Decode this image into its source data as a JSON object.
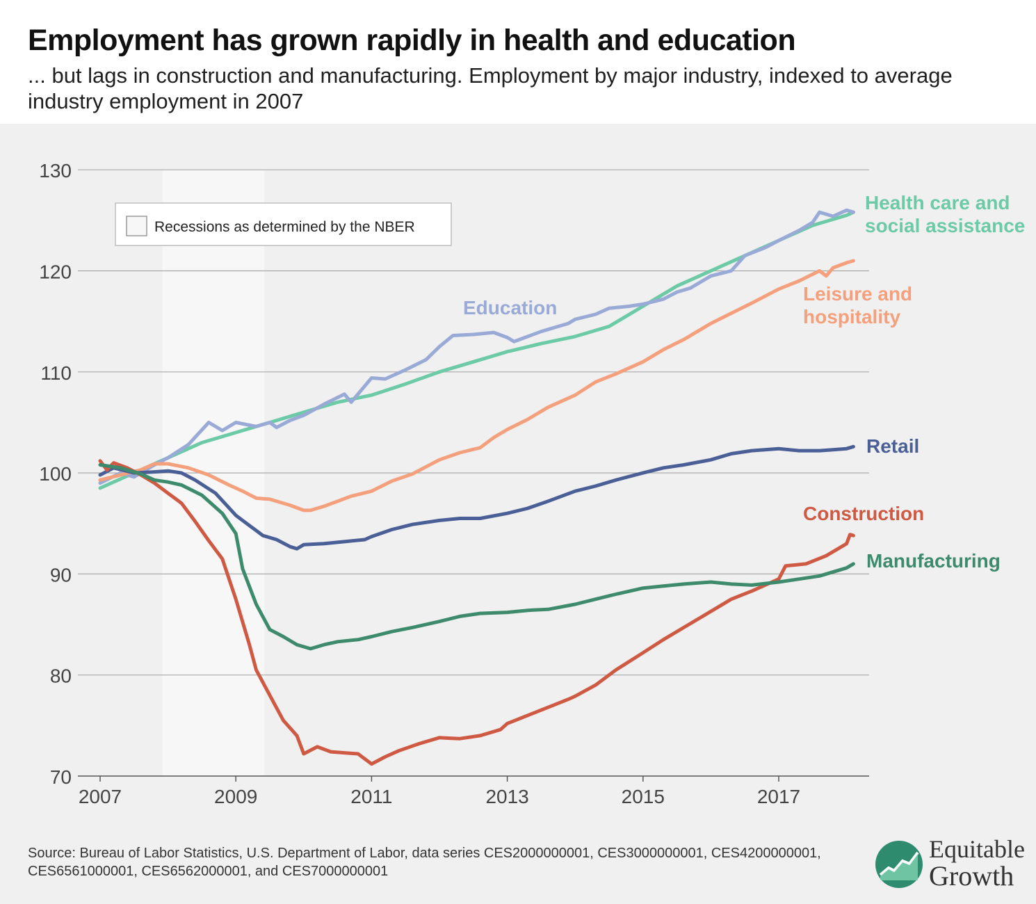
{
  "header": {
    "title": "Employment has grown rapidly in health and education",
    "subtitle": "... but lags in construction and manufacturing. Employment by major industry, indexed to average industry employment in 2007"
  },
  "source": "Source: Bureau of Labor Statistics, U.S. Department of Labor, data series CES2000000001, CES3000000001, CES4200000001, CES6561000001, CES6562000001, and CES7000000001",
  "logo": {
    "line1": "Equitable",
    "line2": "Growth",
    "icon": "chart-growth-icon",
    "color": "#2e8b6e"
  },
  "chart_data": {
    "type": "line",
    "title": "",
    "xlabel": "",
    "ylabel": "",
    "x_ticks": [
      "2007",
      "2009",
      "2011",
      "2013",
      "2015",
      "2017"
    ],
    "y_ticks": [
      70,
      80,
      90,
      100,
      110,
      120,
      130
    ],
    "xlim": [
      2007.0,
      2018.1
    ],
    "ylim": [
      70,
      130
    ],
    "grid": "horizontal",
    "recession": {
      "start": 2007.92,
      "end": 2009.42,
      "label": "Recessions as determined by the NBER",
      "color": "#f7f7f7"
    },
    "series": [
      {
        "name": "Health care and social assistance",
        "label_lines": [
          "Health care and",
          "social assistance"
        ],
        "color": "#6ccaa6",
        "points": [
          [
            2007.0,
            98.5
          ],
          [
            2007.5,
            100.0
          ],
          [
            2008.0,
            101.5
          ],
          [
            2008.5,
            103.0
          ],
          [
            2009.0,
            104.0
          ],
          [
            2009.5,
            105.0
          ],
          [
            2010.0,
            106.0
          ],
          [
            2010.5,
            107.0
          ],
          [
            2011.0,
            107.7
          ],
          [
            2011.5,
            108.8
          ],
          [
            2012.0,
            110.0
          ],
          [
            2012.5,
            111.0
          ],
          [
            2013.0,
            112.0
          ],
          [
            2013.5,
            112.8
          ],
          [
            2014.0,
            113.5
          ],
          [
            2014.5,
            114.5
          ],
          [
            2015.0,
            116.5
          ],
          [
            2015.5,
            118.5
          ],
          [
            2016.0,
            120.0
          ],
          [
            2016.5,
            121.5
          ],
          [
            2017.0,
            123.0
          ],
          [
            2017.5,
            124.5
          ],
          [
            2018.0,
            125.5
          ],
          [
            2018.1,
            125.8
          ]
        ]
      },
      {
        "name": "Education",
        "label_lines": [
          "Education"
        ],
        "color": "#9aaad6",
        "points": [
          [
            2007.0,
            99.0
          ],
          [
            2007.3,
            100.0
          ],
          [
            2007.5,
            99.6
          ],
          [
            2007.8,
            100.8
          ],
          [
            2008.0,
            101.5
          ],
          [
            2008.3,
            102.8
          ],
          [
            2008.6,
            105.0
          ],
          [
            2008.8,
            104.2
          ],
          [
            2009.0,
            105.0
          ],
          [
            2009.3,
            104.6
          ],
          [
            2009.5,
            105.0
          ],
          [
            2009.6,
            104.5
          ],
          [
            2009.8,
            105.2
          ],
          [
            2010.0,
            105.7
          ],
          [
            2010.3,
            106.8
          ],
          [
            2010.6,
            107.8
          ],
          [
            2010.7,
            107.0
          ],
          [
            2010.9,
            108.6
          ],
          [
            2011.0,
            109.4
          ],
          [
            2011.2,
            109.3
          ],
          [
            2011.5,
            110.2
          ],
          [
            2011.8,
            111.2
          ],
          [
            2012.0,
            112.5
          ],
          [
            2012.2,
            113.6
          ],
          [
            2012.5,
            113.7
          ],
          [
            2012.8,
            113.9
          ],
          [
            2013.0,
            113.4
          ],
          [
            2013.1,
            113.0
          ],
          [
            2013.3,
            113.5
          ],
          [
            2013.5,
            114.0
          ],
          [
            2013.7,
            114.4
          ],
          [
            2013.9,
            114.8
          ],
          [
            2014.0,
            115.2
          ],
          [
            2014.3,
            115.7
          ],
          [
            2014.5,
            116.3
          ],
          [
            2014.8,
            116.5
          ],
          [
            2015.0,
            116.7
          ],
          [
            2015.3,
            117.2
          ],
          [
            2015.5,
            117.9
          ],
          [
            2015.7,
            118.3
          ],
          [
            2016.0,
            119.5
          ],
          [
            2016.3,
            120.0
          ],
          [
            2016.5,
            121.5
          ],
          [
            2016.8,
            122.3
          ],
          [
            2017.0,
            123.0
          ],
          [
            2017.3,
            124.0
          ],
          [
            2017.5,
            124.8
          ],
          [
            2017.6,
            125.8
          ],
          [
            2017.8,
            125.4
          ],
          [
            2018.0,
            126.0
          ],
          [
            2018.1,
            125.8
          ]
        ]
      },
      {
        "name": "Leisure and hospitality",
        "label_lines": [
          "Leisure and",
          "hospitality"
        ],
        "color": "#f4a07c",
        "points": [
          [
            2007.0,
            99.3
          ],
          [
            2007.3,
            99.8
          ],
          [
            2007.6,
            100.3
          ],
          [
            2007.8,
            100.9
          ],
          [
            2008.0,
            100.9
          ],
          [
            2008.3,
            100.5
          ],
          [
            2008.6,
            99.8
          ],
          [
            2008.9,
            98.8
          ],
          [
            2009.1,
            98.2
          ],
          [
            2009.3,
            97.5
          ],
          [
            2009.5,
            97.4
          ],
          [
            2009.8,
            96.8
          ],
          [
            2010.0,
            96.3
          ],
          [
            2010.1,
            96.3
          ],
          [
            2010.3,
            96.7
          ],
          [
            2010.5,
            97.2
          ],
          [
            2010.7,
            97.7
          ],
          [
            2011.0,
            98.2
          ],
          [
            2011.3,
            99.2
          ],
          [
            2011.6,
            99.9
          ],
          [
            2012.0,
            101.3
          ],
          [
            2012.3,
            102.0
          ],
          [
            2012.6,
            102.5
          ],
          [
            2012.8,
            103.5
          ],
          [
            2013.0,
            104.3
          ],
          [
            2013.3,
            105.3
          ],
          [
            2013.6,
            106.5
          ],
          [
            2014.0,
            107.7
          ],
          [
            2014.3,
            109.0
          ],
          [
            2014.6,
            109.8
          ],
          [
            2015.0,
            111.0
          ],
          [
            2015.3,
            112.2
          ],
          [
            2015.6,
            113.2
          ],
          [
            2016.0,
            114.8
          ],
          [
            2016.3,
            115.8
          ],
          [
            2016.6,
            116.8
          ],
          [
            2017.0,
            118.2
          ],
          [
            2017.3,
            119.0
          ],
          [
            2017.6,
            120.0
          ],
          [
            2017.7,
            119.5
          ],
          [
            2017.8,
            120.3
          ],
          [
            2018.0,
            120.8
          ],
          [
            2018.1,
            121.0
          ]
        ]
      },
      {
        "name": "Retail",
        "label_lines": [
          "Retail"
        ],
        "color": "#4a5f96",
        "points": [
          [
            2007.0,
            99.8
          ],
          [
            2007.2,
            100.5
          ],
          [
            2007.5,
            100.0
          ],
          [
            2007.8,
            100.1
          ],
          [
            2008.0,
            100.2
          ],
          [
            2008.2,
            100.0
          ],
          [
            2008.4,
            99.3
          ],
          [
            2008.7,
            98.0
          ],
          [
            2009.0,
            95.8
          ],
          [
            2009.2,
            94.8
          ],
          [
            2009.4,
            93.8
          ],
          [
            2009.6,
            93.4
          ],
          [
            2009.8,
            92.7
          ],
          [
            2009.9,
            92.5
          ],
          [
            2010.0,
            92.9
          ],
          [
            2010.3,
            93.0
          ],
          [
            2010.6,
            93.2
          ],
          [
            2010.9,
            93.4
          ],
          [
            2011.0,
            93.7
          ],
          [
            2011.3,
            94.4
          ],
          [
            2011.6,
            94.9
          ],
          [
            2012.0,
            95.3
          ],
          [
            2012.3,
            95.5
          ],
          [
            2012.6,
            95.5
          ],
          [
            2013.0,
            96.0
          ],
          [
            2013.3,
            96.5
          ],
          [
            2013.6,
            97.2
          ],
          [
            2014.0,
            98.2
          ],
          [
            2014.3,
            98.7
          ],
          [
            2014.6,
            99.3
          ],
          [
            2015.0,
            100.0
          ],
          [
            2015.3,
            100.5
          ],
          [
            2015.6,
            100.8
          ],
          [
            2016.0,
            101.3
          ],
          [
            2016.3,
            101.9
          ],
          [
            2016.6,
            102.2
          ],
          [
            2017.0,
            102.4
          ],
          [
            2017.3,
            102.2
          ],
          [
            2017.6,
            102.2
          ],
          [
            2017.8,
            102.3
          ],
          [
            2018.0,
            102.4
          ],
          [
            2018.1,
            102.6
          ]
        ]
      },
      {
        "name": "Construction",
        "label_lines": [
          "Construction"
        ],
        "color": "#cf5a44",
        "points": [
          [
            2007.0,
            101.2
          ],
          [
            2007.1,
            100.3
          ],
          [
            2007.2,
            101.0
          ],
          [
            2007.4,
            100.5
          ],
          [
            2007.6,
            99.8
          ],
          [
            2007.8,
            99.0
          ],
          [
            2008.0,
            98.0
          ],
          [
            2008.2,
            97.0
          ],
          [
            2008.4,
            95.2
          ],
          [
            2008.6,
            93.3
          ],
          [
            2008.8,
            91.5
          ],
          [
            2009.0,
            87.5
          ],
          [
            2009.2,
            83.0
          ],
          [
            2009.3,
            80.5
          ],
          [
            2009.5,
            78.0
          ],
          [
            2009.7,
            75.5
          ],
          [
            2009.9,
            74.0
          ],
          [
            2010.0,
            72.2
          ],
          [
            2010.2,
            72.9
          ],
          [
            2010.4,
            72.4
          ],
          [
            2010.6,
            72.3
          ],
          [
            2010.8,
            72.2
          ],
          [
            2011.0,
            71.2
          ],
          [
            2011.2,
            71.9
          ],
          [
            2011.4,
            72.5
          ],
          [
            2011.7,
            73.2
          ],
          [
            2012.0,
            73.8
          ],
          [
            2012.3,
            73.7
          ],
          [
            2012.6,
            74.0
          ],
          [
            2012.9,
            74.6
          ],
          [
            2013.0,
            75.2
          ],
          [
            2013.3,
            76.0
          ],
          [
            2013.6,
            76.8
          ],
          [
            2013.9,
            77.6
          ],
          [
            2014.0,
            77.9
          ],
          [
            2014.3,
            79.0
          ],
          [
            2014.6,
            80.5
          ],
          [
            2015.0,
            82.2
          ],
          [
            2015.3,
            83.5
          ],
          [
            2015.6,
            84.7
          ],
          [
            2016.0,
            86.3
          ],
          [
            2016.3,
            87.5
          ],
          [
            2016.6,
            88.3
          ],
          [
            2017.0,
            89.5
          ],
          [
            2017.1,
            90.8
          ],
          [
            2017.4,
            91.0
          ],
          [
            2017.7,
            91.8
          ],
          [
            2018.0,
            93.0
          ],
          [
            2018.05,
            93.9
          ],
          [
            2018.1,
            93.8
          ]
        ]
      },
      {
        "name": "Manufacturing",
        "label_lines": [
          "Manufacturing"
        ],
        "color": "#3d8b6c",
        "points": [
          [
            2007.0,
            100.8
          ],
          [
            2007.3,
            100.5
          ],
          [
            2007.6,
            99.9
          ],
          [
            2007.8,
            99.3
          ],
          [
            2008.0,
            99.1
          ],
          [
            2008.2,
            98.8
          ],
          [
            2008.5,
            97.8
          ],
          [
            2008.8,
            96.0
          ],
          [
            2009.0,
            94.0
          ],
          [
            2009.1,
            90.5
          ],
          [
            2009.3,
            87.0
          ],
          [
            2009.5,
            84.5
          ],
          [
            2009.7,
            83.8
          ],
          [
            2009.9,
            83.0
          ],
          [
            2010.1,
            82.6
          ],
          [
            2010.3,
            83.0
          ],
          [
            2010.5,
            83.3
          ],
          [
            2010.8,
            83.5
          ],
          [
            2011.0,
            83.8
          ],
          [
            2011.3,
            84.3
          ],
          [
            2011.6,
            84.7
          ],
          [
            2012.0,
            85.3
          ],
          [
            2012.3,
            85.8
          ],
          [
            2012.6,
            86.1
          ],
          [
            2013.0,
            86.2
          ],
          [
            2013.3,
            86.4
          ],
          [
            2013.6,
            86.5
          ],
          [
            2014.0,
            87.0
          ],
          [
            2014.3,
            87.5
          ],
          [
            2014.6,
            88.0
          ],
          [
            2015.0,
            88.6
          ],
          [
            2015.3,
            88.8
          ],
          [
            2015.6,
            89.0
          ],
          [
            2016.0,
            89.2
          ],
          [
            2016.3,
            89.0
          ],
          [
            2016.6,
            88.9
          ],
          [
            2017.0,
            89.2
          ],
          [
            2017.3,
            89.5
          ],
          [
            2017.6,
            89.8
          ],
          [
            2018.0,
            90.6
          ],
          [
            2018.1,
            91.0
          ]
        ]
      }
    ]
  }
}
